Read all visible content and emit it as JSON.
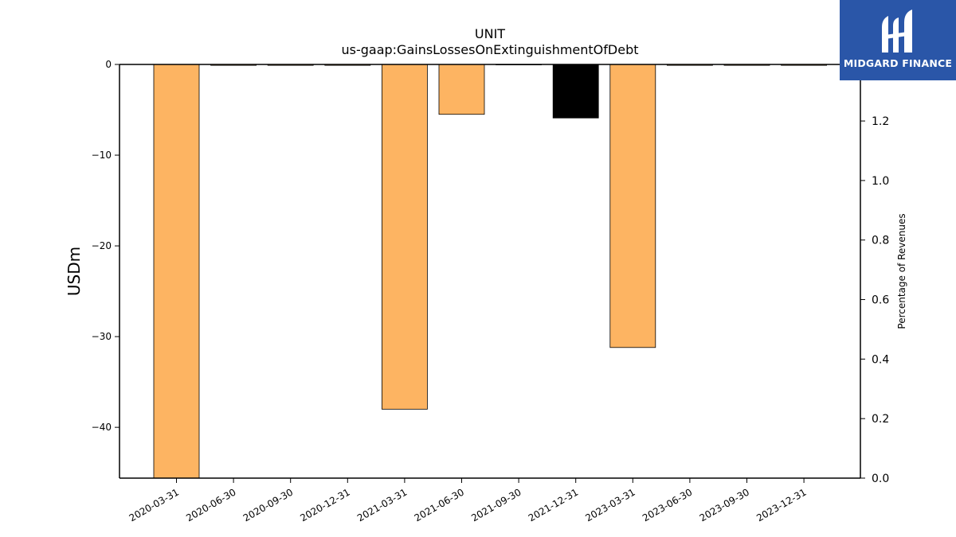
{
  "brand": {
    "name": "MIDGARD FINANCE",
    "logo_icon": "midgard-m-icon",
    "color": "#2a56a8"
  },
  "chart_data": {
    "type": "bar",
    "title": "UNIT",
    "subtitle": "us-gaap:GainsLossesOnExtinguishmentOfDebt",
    "ylabel": "USDm",
    "ylabel_right": "Percentage of Revenues",
    "categories": [
      "2020-03-31",
      "2020-06-30",
      "2020-09-30",
      "2020-12-31",
      "2021-03-31",
      "2021-06-30",
      "2021-09-30",
      "2021-12-31",
      "2023-03-31",
      "2023-06-30",
      "2023-09-30",
      "2023-12-31"
    ],
    "values": [
      -45.6,
      -0.1,
      -0.1,
      -0.1,
      -38.0,
      -5.5,
      0,
      -5.9,
      -31.2,
      -0.1,
      -0.1,
      -0.1
    ],
    "highlight_index": 7,
    "bar_color": "#fdb462",
    "highlight_color": "#000000",
    "ylim": [
      -45.6,
      0
    ],
    "yticks": [
      0,
      -10,
      -20,
      -30,
      -40
    ],
    "ytick_labels": [
      "0",
      "−10",
      "−20",
      "−30",
      "−40"
    ],
    "ylim_right": [
      0,
      1.39
    ],
    "yticks_right": [
      0,
      0.2,
      0.4,
      0.6,
      0.8,
      1.0,
      1.2
    ],
    "ytick_labels_right": [
      "0.0",
      "0.2",
      "0.4",
      "0.6",
      "0.8",
      "1.0",
      "1.2"
    ],
    "grid": false,
    "legend": "none"
  }
}
